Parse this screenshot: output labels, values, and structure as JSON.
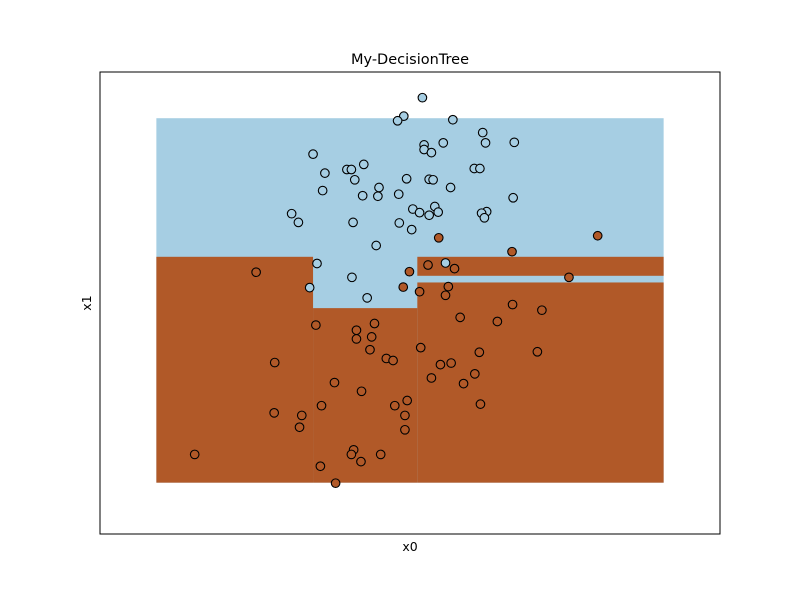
{
  "chart_data": {
    "type": "scatter",
    "title": "My-DecisionTree",
    "xlabel": "x0",
    "ylabel": "x1",
    "xlim": [
      -0.5,
      10.5
    ],
    "ylim": [
      -0.5,
      8.5
    ],
    "xticks_visible": false,
    "yticks_visible": false,
    "grid": false,
    "legend": "none",
    "colors": {
      "class_0_region": "#a6cee3",
      "class_1_region": "#b15928",
      "marker_edge": "#000000"
    },
    "decision_regions": [
      {
        "class": 0,
        "x": [
          0.5,
          9.5
        ],
        "y": [
          0.5,
          7.6
        ]
      },
      {
        "class": 1,
        "x": [
          0.5,
          3.28
        ],
        "y": [
          0.5,
          4.9
        ]
      },
      {
        "class": 1,
        "x": [
          3.28,
          5.13
        ],
        "y": [
          0.5,
          3.9
        ]
      },
      {
        "class": 1,
        "x": [
          5.13,
          9.5
        ],
        "y": [
          0.5,
          4.4
        ]
      },
      {
        "class": 1,
        "x": [
          5.13,
          9.5
        ],
        "y": [
          4.53,
          4.9
        ]
      }
    ],
    "points": [
      {
        "x": 5.22,
        "y": 8.0,
        "c": 0
      },
      {
        "x": 4.89,
        "y": 7.64,
        "c": 0
      },
      {
        "x": 4.78,
        "y": 7.55,
        "c": 0
      },
      {
        "x": 5.76,
        "y": 7.57,
        "c": 0
      },
      {
        "x": 6.29,
        "y": 7.32,
        "c": 0
      },
      {
        "x": 5.59,
        "y": 7.12,
        "c": 0
      },
      {
        "x": 5.25,
        "y": 7.08,
        "c": 0
      },
      {
        "x": 6.34,
        "y": 7.12,
        "c": 0
      },
      {
        "x": 6.85,
        "y": 7.13,
        "c": 0
      },
      {
        "x": 5.25,
        "y": 6.99,
        "c": 0
      },
      {
        "x": 5.38,
        "y": 6.93,
        "c": 0
      },
      {
        "x": 3.28,
        "y": 6.9,
        "c": 0
      },
      {
        "x": 4.18,
        "y": 6.7,
        "c": 0
      },
      {
        "x": 3.88,
        "y": 6.6,
        "c": 0
      },
      {
        "x": 3.96,
        "y": 6.6,
        "c": 0
      },
      {
        "x": 3.49,
        "y": 6.53,
        "c": 0
      },
      {
        "x": 4.02,
        "y": 6.4,
        "c": 0
      },
      {
        "x": 4.94,
        "y": 6.42,
        "c": 0
      },
      {
        "x": 5.34,
        "y": 6.41,
        "c": 0
      },
      {
        "x": 5.41,
        "y": 6.4,
        "c": 0
      },
      {
        "x": 6.14,
        "y": 6.62,
        "c": 0
      },
      {
        "x": 6.24,
        "y": 6.62,
        "c": 0
      },
      {
        "x": 3.45,
        "y": 6.19,
        "c": 0
      },
      {
        "x": 4.45,
        "y": 6.25,
        "c": 0
      },
      {
        "x": 4.16,
        "y": 6.09,
        "c": 0
      },
      {
        "x": 4.43,
        "y": 6.08,
        "c": 0
      },
      {
        "x": 4.8,
        "y": 6.12,
        "c": 0
      },
      {
        "x": 5.72,
        "y": 6.25,
        "c": 0
      },
      {
        "x": 6.83,
        "y": 6.05,
        "c": 0
      },
      {
        "x": 5.44,
        "y": 5.88,
        "c": 0
      },
      {
        "x": 5.05,
        "y": 5.83,
        "c": 0
      },
      {
        "x": 5.17,
        "y": 5.76,
        "c": 0
      },
      {
        "x": 5.5,
        "y": 5.77,
        "c": 0
      },
      {
        "x": 6.36,
        "y": 5.78,
        "c": 0
      },
      {
        "x": 5.34,
        "y": 5.71,
        "c": 0
      },
      {
        "x": 6.27,
        "y": 5.75,
        "c": 0
      },
      {
        "x": 2.9,
        "y": 5.74,
        "c": 0
      },
      {
        "x": 6.32,
        "y": 5.66,
        "c": 0
      },
      {
        "x": 3.02,
        "y": 5.57,
        "c": 0
      },
      {
        "x": 3.99,
        "y": 5.57,
        "c": 0
      },
      {
        "x": 4.81,
        "y": 5.56,
        "c": 0
      },
      {
        "x": 5.03,
        "y": 5.43,
        "c": 0
      },
      {
        "x": 5.51,
        "y": 5.27,
        "c": 1
      },
      {
        "x": 4.4,
        "y": 5.12,
        "c": 0
      },
      {
        "x": 8.33,
        "y": 5.31,
        "c": 1
      },
      {
        "x": 6.81,
        "y": 5.0,
        "c": 1
      },
      {
        "x": 5.63,
        "y": 4.78,
        "c": 0
      },
      {
        "x": 3.35,
        "y": 4.77,
        "c": 0
      },
      {
        "x": 5.32,
        "y": 4.74,
        "c": 1
      },
      {
        "x": 4.99,
        "y": 4.61,
        "c": 1
      },
      {
        "x": 5.79,
        "y": 4.67,
        "c": 1
      },
      {
        "x": 2.27,
        "y": 4.6,
        "c": 1
      },
      {
        "x": 3.97,
        "y": 4.5,
        "c": 0
      },
      {
        "x": 7.82,
        "y": 4.5,
        "c": 1
      },
      {
        "x": 4.88,
        "y": 4.31,
        "c": 1
      },
      {
        "x": 5.17,
        "y": 4.22,
        "c": 1
      },
      {
        "x": 5.68,
        "y": 4.32,
        "c": 1
      },
      {
        "x": 3.22,
        "y": 4.3,
        "c": 0
      },
      {
        "x": 4.24,
        "y": 4.1,
        "c": 0
      },
      {
        "x": 5.63,
        "y": 4.15,
        "c": 1
      },
      {
        "x": 6.82,
        "y": 3.97,
        "c": 1
      },
      {
        "x": 7.34,
        "y": 3.86,
        "c": 1
      },
      {
        "x": 5.89,
        "y": 3.72,
        "c": 1
      },
      {
        "x": 6.55,
        "y": 3.64,
        "c": 1
      },
      {
        "x": 3.33,
        "y": 3.57,
        "c": 1
      },
      {
        "x": 4.37,
        "y": 3.6,
        "c": 1
      },
      {
        "x": 4.05,
        "y": 3.47,
        "c": 1
      },
      {
        "x": 4.05,
        "y": 3.3,
        "c": 1
      },
      {
        "x": 4.32,
        "y": 3.34,
        "c": 1
      },
      {
        "x": 4.29,
        "y": 3.09,
        "c": 1
      },
      {
        "x": 5.19,
        "y": 3.13,
        "c": 1
      },
      {
        "x": 7.26,
        "y": 3.05,
        "c": 1
      },
      {
        "x": 6.23,
        "y": 3.04,
        "c": 1
      },
      {
        "x": 4.58,
        "y": 2.92,
        "c": 1
      },
      {
        "x": 4.7,
        "y": 2.88,
        "c": 1
      },
      {
        "x": 5.54,
        "y": 2.8,
        "c": 1
      },
      {
        "x": 5.73,
        "y": 2.83,
        "c": 1
      },
      {
        "x": 2.6,
        "y": 2.84,
        "c": 1
      },
      {
        "x": 6.15,
        "y": 2.62,
        "c": 1
      },
      {
        "x": 5.38,
        "y": 2.54,
        "c": 1
      },
      {
        "x": 3.66,
        "y": 2.45,
        "c": 1
      },
      {
        "x": 5.95,
        "y": 2.43,
        "c": 1
      },
      {
        "x": 4.14,
        "y": 2.28,
        "c": 1
      },
      {
        "x": 4.95,
        "y": 2.1,
        "c": 1
      },
      {
        "x": 3.43,
        "y": 2.0,
        "c": 1
      },
      {
        "x": 4.73,
        "y": 2.0,
        "c": 1
      },
      {
        "x": 6.25,
        "y": 2.03,
        "c": 1
      },
      {
        "x": 2.59,
        "y": 1.86,
        "c": 1
      },
      {
        "x": 3.08,
        "y": 1.81,
        "c": 1
      },
      {
        "x": 4.91,
        "y": 1.81,
        "c": 1
      },
      {
        "x": 3.04,
        "y": 1.58,
        "c": 1
      },
      {
        "x": 4.91,
        "y": 1.53,
        "c": 1
      },
      {
        "x": 4.0,
        "y": 1.14,
        "c": 1
      },
      {
        "x": 3.96,
        "y": 1.05,
        "c": 1
      },
      {
        "x": 4.48,
        "y": 1.05,
        "c": 1
      },
      {
        "x": 1.18,
        "y": 1.05,
        "c": 1
      },
      {
        "x": 4.13,
        "y": 0.91,
        "c": 1
      },
      {
        "x": 3.41,
        "y": 0.82,
        "c": 1
      },
      {
        "x": 3.68,
        "y": 0.49,
        "c": 1
      }
    ]
  }
}
